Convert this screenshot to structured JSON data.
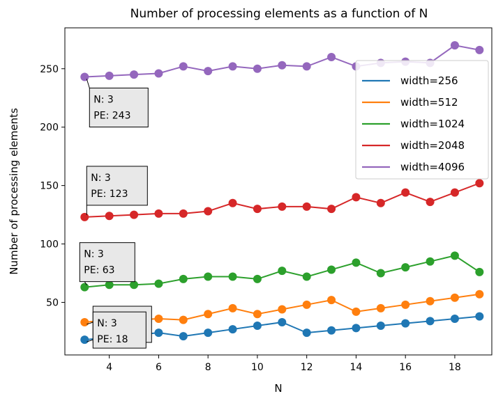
{
  "chart_data": {
    "type": "line",
    "title": "Number of processing elements as a function of N",
    "xlabel": "N",
    "ylabel": "Number of processing elements",
    "xlim": [
      2.2,
      19.5
    ],
    "ylim": [
      5,
      285
    ],
    "xticks": [
      4,
      6,
      8,
      10,
      12,
      14,
      16,
      18
    ],
    "yticks": [
      50,
      100,
      150,
      200,
      250
    ],
    "grid": false,
    "legend_position": "upper-right",
    "x": [
      3,
      4,
      5,
      6,
      7,
      8,
      9,
      10,
      11,
      12,
      13,
      14,
      15,
      16,
      17,
      18,
      19
    ],
    "series": [
      {
        "name": "width=256",
        "color": "#1f77b4",
        "values": [
          18,
          20,
          22,
          24,
          21,
          24,
          27,
          30,
          33,
          24,
          26,
          28,
          30,
          32,
          34,
          36,
          38
        ]
      },
      {
        "name": "width=512",
        "color": "#ff7f0e",
        "values": [
          33,
          35,
          35,
          36,
          35,
          40,
          45,
          40,
          44,
          48,
          52,
          42,
          45,
          48,
          51,
          54,
          57
        ]
      },
      {
        "name": "width=1024",
        "color": "#2ca02c",
        "values": [
          63,
          65,
          65,
          66,
          70,
          72,
          72,
          70,
          77,
          72,
          78,
          84,
          75,
          80,
          85,
          90,
          76
        ]
      },
      {
        "name": "width=2048",
        "color": "#d62728",
        "values": [
          123,
          124,
          125,
          126,
          126,
          128,
          135,
          130,
          132,
          132,
          130,
          140,
          135,
          144,
          136,
          144,
          152
        ]
      },
      {
        "name": "width=4096",
        "color": "#9467bd",
        "values": [
          243,
          244,
          245,
          246,
          252,
          248,
          252,
          250,
          253,
          252,
          260,
          252,
          255,
          256,
          255,
          270,
          266
        ]
      }
    ],
    "annotations": [
      {
        "line1": "N: 3",
        "line2": "PE: 243",
        "x": 3,
        "y": 243,
        "position": "below-right"
      },
      {
        "line1": "N: 3",
        "line2": "PE: 123",
        "x": 3,
        "y": 123,
        "position": "above-right"
      },
      {
        "line1": "N: 3",
        "line2": "PE: 63",
        "x": 3,
        "y": 63,
        "position": "above"
      },
      {
        "line1": "N: 3",
        "line2": "PE: 33",
        "x": 3,
        "y": 33,
        "position": "upper-right"
      },
      {
        "line1": "N: 3",
        "line2": "PE: 18",
        "x": 3,
        "y": 18,
        "position": "right"
      }
    ]
  }
}
